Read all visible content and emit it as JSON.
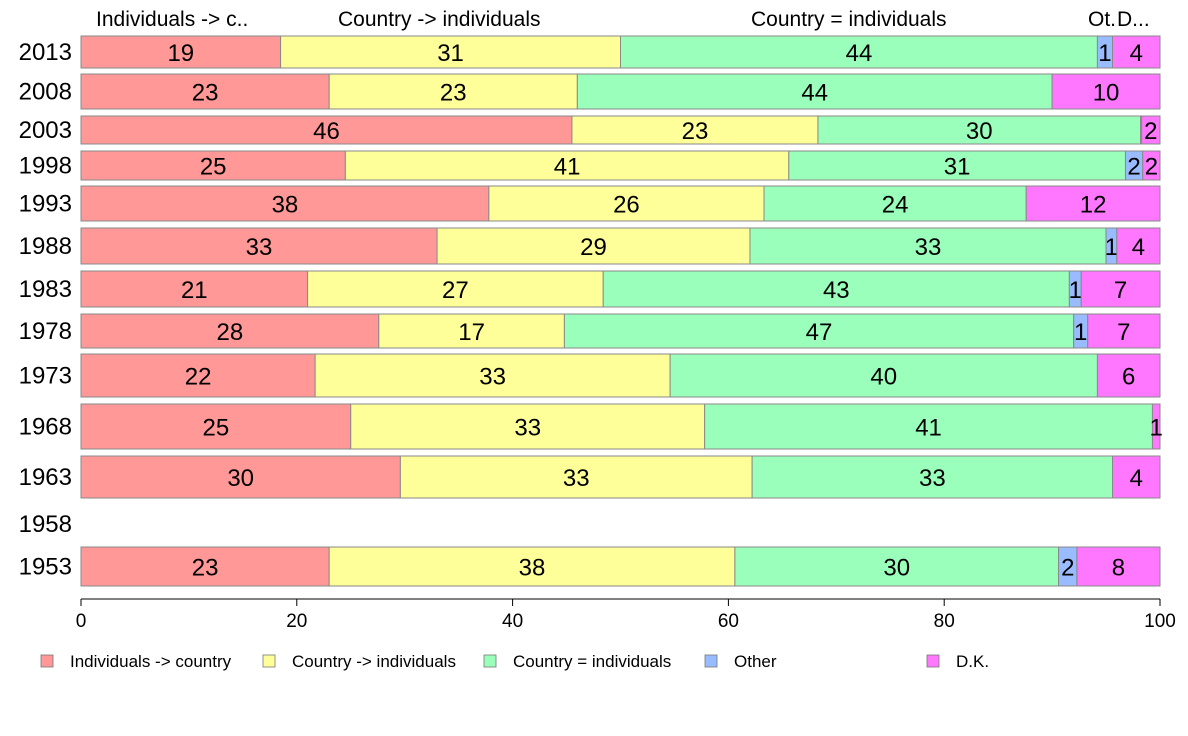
{
  "chart_data": {
    "type": "bar",
    "orientation": "horizontal",
    "stacked": true,
    "xlim": [
      0,
      100
    ],
    "x_ticks": [
      0,
      20,
      40,
      60,
      80,
      100
    ],
    "grid": false,
    "legend_position": "bottom",
    "column_headers": [
      "Individuals -> c..",
      "Country -> individuals",
      "Country = individuals",
      "Ot.",
      "D..."
    ],
    "categories": [
      "2013",
      "2008",
      "2003",
      "1998",
      "1993",
      "1988",
      "1983",
      "1978",
      "1973",
      "1968",
      "1963",
      "1958",
      "1953"
    ],
    "series": [
      {
        "name": "Individuals -> country",
        "color": "#ff9896",
        "values": [
          18.5,
          23,
          45.5,
          24.5,
          37.8,
          33,
          21,
          27.6,
          21.7,
          25,
          29.6,
          null,
          23
        ]
      },
      {
        "name": "Country -> individuals",
        "color": "#ffff99",
        "values": [
          31.5,
          23,
          22.8,
          41.1,
          25.5,
          29,
          27.4,
          17.2,
          32.9,
          32.8,
          32.6,
          null,
          37.6
        ]
      },
      {
        "name": "Country = individuals",
        "color": "#99ffbb",
        "values": [
          44.2,
          44,
          29.9,
          31.2,
          24.3,
          33,
          43.2,
          47.2,
          39.6,
          41.5,
          33.4,
          null,
          30
        ]
      },
      {
        "name": "Other",
        "color": "#99bbff",
        "values": [
          1.4,
          0,
          0.1,
          1.6,
          0,
          1,
          1.1,
          1.3,
          0,
          0,
          0,
          null,
          1.7
        ]
      },
      {
        "name": "D.K.",
        "color": "#ff77ff",
        "values": [
          4.4,
          10,
          1.7,
          1.6,
          12.4,
          4,
          7.3,
          6.7,
          5.8,
          0.7,
          4.4,
          null,
          7.7
        ]
      }
    ],
    "data_labels": [
      [
        "19",
        "31",
        "44",
        "1",
        "4"
      ],
      [
        "23",
        "23",
        "44",
        "",
        "10"
      ],
      [
        "46",
        "23",
        "30",
        "",
        "2"
      ],
      [
        "25",
        "41",
        "31",
        "2",
        "2"
      ],
      [
        "38",
        "26",
        "24",
        "",
        "12"
      ],
      [
        "33",
        "29",
        "33",
        "1",
        "4"
      ],
      [
        "21",
        "27",
        "43",
        "1",
        "7"
      ],
      [
        "28",
        "17",
        "47",
        "1",
        "7"
      ],
      [
        "22",
        "33",
        "40",
        "",
        "6"
      ],
      [
        "25",
        "33",
        "41",
        "",
        "1"
      ],
      [
        "30",
        "33",
        "33",
        "",
        "4"
      ],
      [],
      [
        "23",
        "38",
        "30",
        "2",
        "8"
      ]
    ]
  }
}
